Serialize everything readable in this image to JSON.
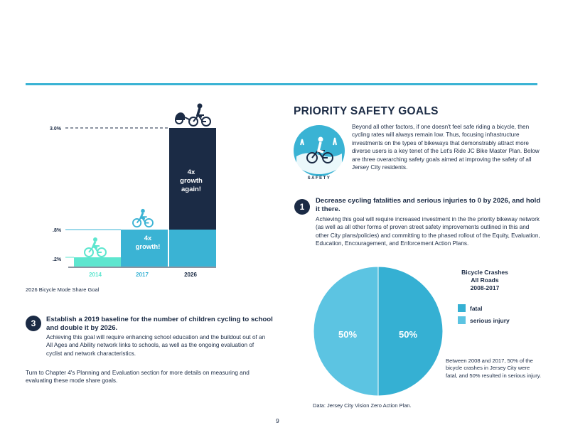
{
  "chart_data": [
    {
      "type": "bar",
      "categories": [
        "2014",
        "2017",
        "2026"
      ],
      "values": [
        0.2,
        0.8,
        3.0
      ],
      "tick_labels": [
        ".2%",
        ".8%",
        "3.0%"
      ],
      "bar_annotations": [
        "",
        "4x\ngrowth!",
        "4x\ngrowth\nagain!"
      ],
      "caption": "2026 Bicycle Mode Share Goal",
      "colors": {
        "2014": "#5ee6cf",
        "2017": "#3ab3d4",
        "2026": "#1b2b45",
        "lower": "#3ab3d4"
      }
    },
    {
      "type": "pie",
      "title": "Bicycle Crashes\nAll Roads\n2008-2017",
      "slices": [
        {
          "label": "fatal",
          "value": 50,
          "display": "50%",
          "color": "#35b0d3"
        },
        {
          "label": "serious injury",
          "value": 50,
          "display": "50%",
          "color": "#5cc4e2"
        }
      ]
    }
  ],
  "left": {
    "goal3": {
      "number": "3",
      "heading": "Establish a 2019 baseline for the number of children cycling to school and double it by 2026.",
      "body": "Achieving this goal will require enhancing school education and the buildout out of an All Ages and Ability network links to schools, as well as the ongoing evaluation of cyclist and network characteristics."
    },
    "footer_text": "Turn to Chapter 4's Planning and Evaluation section for more details on measuring and evaluating these mode share goals."
  },
  "right": {
    "title": "PRIORITY SAFETY GOALS",
    "badge_label": "SAFETY",
    "intro": "Beyond all other factors, if one doesn't feel safe riding a bicycle, then cycling rates will always remain low. Thus, focusing infrastructure investments on the types of bikeways that demonstrably attract more diverse users is a key tenet of the Let's Ride JC Bike Master Plan. Below are three overarching safety goals aimed at improving the safety of all Jersey City residents.",
    "goal1": {
      "number": "1",
      "heading": "Decrease cycling fatalities and serious injuries to 0 by 2026, and hold it there.",
      "body": "Achieving this goal will require increased investment in the the priority bikeway network (as well as all other forms of proven street safety improvements outlined in this and other City plans/policies) and committing to the phased rollout of the Equity, Evaluation, Education, Encouragement, and Enforcement Action Plans."
    },
    "pie_note": "Between 2008 and 2017, 50% of the bicycle crashes in Jersey City were fatal, and 50% resulted in serious injury.",
    "source": "Data: Jersey City Vision Zero Action Plan."
  },
  "page_number": "9"
}
